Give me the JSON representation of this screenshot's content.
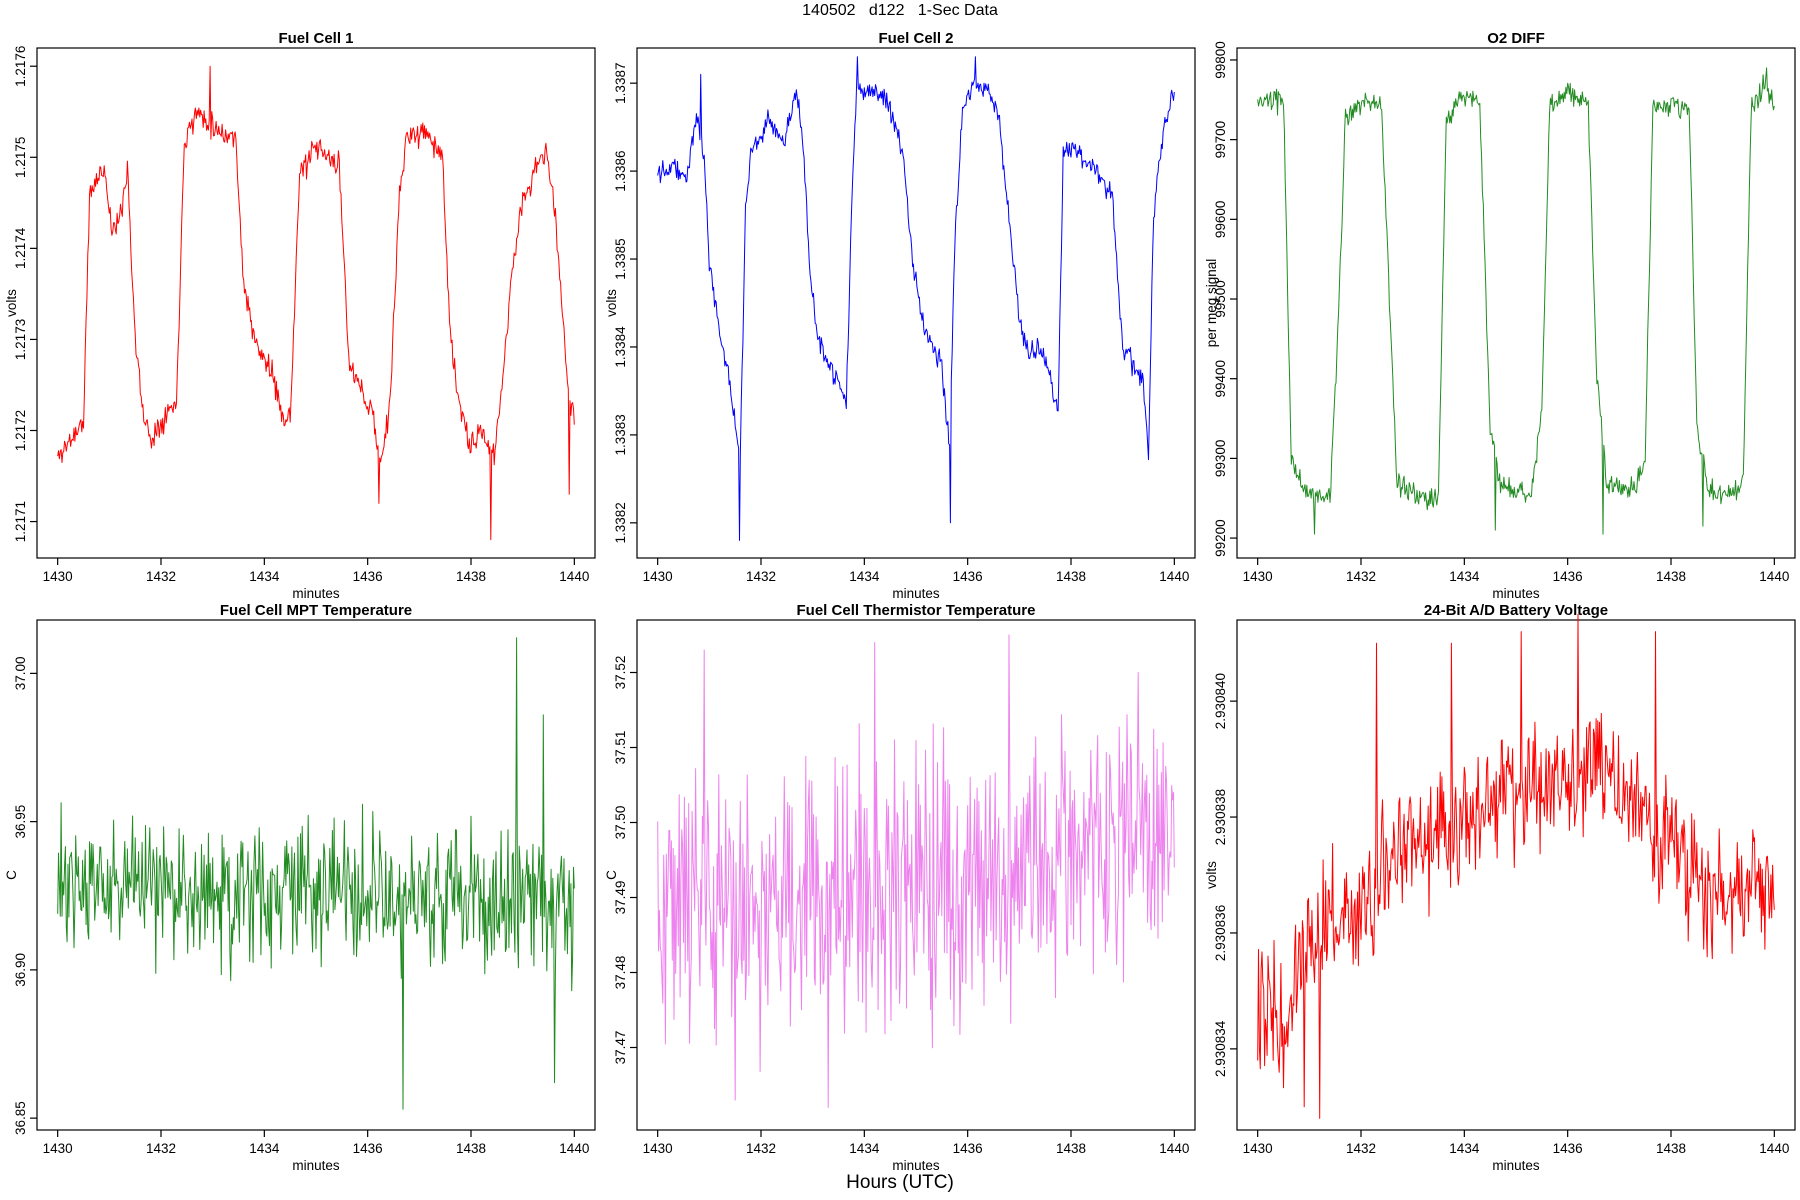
{
  "page": {
    "title": "140502   d122   1-Sec Data",
    "global_xlabel": "Hours (UTC)",
    "background": "#FFFFFF"
  },
  "chart_data": [
    {
      "type": "line",
      "title": "Fuel Cell 1",
      "xlabel": "minutes",
      "ylabel": "volts",
      "color": "#FF0000",
      "grid": false,
      "legend": null,
      "xlim": [
        1429.6,
        1440.4
      ],
      "ylim": [
        1.21706,
        1.21762
      ],
      "xtick_vals": [
        1430,
        1432,
        1434,
        1436,
        1438,
        1440
      ],
      "xtick_labels": [
        "1430",
        "1432",
        "1434",
        "1436",
        "1438",
        "1440"
      ],
      "ytick_vals": [
        1.2171,
        1.2172,
        1.2173,
        1.2174,
        1.2175,
        1.2176
      ],
      "ytick_labels": [
        "1.2171",
        "1.2172",
        "1.2173",
        "1.2174",
        "1.2175",
        "1.2176"
      ],
      "signal": {
        "t_start": 1430,
        "t_end": 1440,
        "points_per_minute": 60,
        "seed": 11,
        "noise_amp": 2e-05,
        "baseline": [
          [
            1430.0,
            1.21717
          ],
          [
            1430.5,
            1.21721
          ],
          [
            1430.62,
            1.21746
          ],
          [
            1430.9,
            1.21749
          ],
          [
            1431.05,
            1.21742
          ],
          [
            1431.2,
            1.21743
          ],
          [
            1431.35,
            1.21749
          ],
          [
            1431.5,
            1.2173
          ],
          [
            1431.65,
            1.21722
          ],
          [
            1431.8,
            1.21719
          ],
          [
            1432.1,
            1.21722
          ],
          [
            1432.3,
            1.21723
          ],
          [
            1432.45,
            1.21752
          ],
          [
            1432.7,
            1.21755
          ],
          [
            1433.1,
            1.21753
          ],
          [
            1433.45,
            1.21752
          ],
          [
            1433.6,
            1.21736
          ],
          [
            1433.85,
            1.21729
          ],
          [
            1434.1,
            1.21727
          ],
          [
            1434.35,
            1.21722
          ],
          [
            1434.5,
            1.21721
          ],
          [
            1434.68,
            1.21748
          ],
          [
            1435.0,
            1.21751
          ],
          [
            1435.45,
            1.21749
          ],
          [
            1435.65,
            1.21727
          ],
          [
            1435.9,
            1.21724
          ],
          [
            1436.1,
            1.21722
          ],
          [
            1436.25,
            1.21716
          ],
          [
            1436.45,
            1.21724
          ],
          [
            1436.6,
            1.21745
          ],
          [
            1436.75,
            1.21752
          ],
          [
            1437.1,
            1.21753
          ],
          [
            1437.45,
            1.2175
          ],
          [
            1437.6,
            1.2173
          ],
          [
            1437.8,
            1.21722
          ],
          [
            1438.0,
            1.21718
          ],
          [
            1438.2,
            1.2172
          ],
          [
            1438.45,
            1.21717
          ],
          [
            1438.6,
            1.21725
          ],
          [
            1438.8,
            1.21738
          ],
          [
            1439.0,
            1.21745
          ],
          [
            1439.2,
            1.21748
          ],
          [
            1439.45,
            1.21751
          ],
          [
            1439.6,
            1.21745
          ],
          [
            1439.75,
            1.21735
          ],
          [
            1439.9,
            1.21723
          ],
          [
            1440.0,
            1.21722
          ]
        ],
        "spikes": [
          [
            1432.95,
            1.2176
          ],
          [
            1436.22,
            1.21712
          ],
          [
            1438.38,
            1.21708
          ],
          [
            1439.9,
            1.21713
          ]
        ]
      }
    },
    {
      "type": "line",
      "title": "Fuel Cell 2",
      "xlabel": "minutes",
      "ylabel": "volts",
      "color": "#0000FF",
      "grid": false,
      "legend": null,
      "xlim": [
        1429.6,
        1440.4
      ],
      "ylim": [
        1.33816,
        1.33874
      ],
      "xtick_vals": [
        1430,
        1432,
        1434,
        1436,
        1438,
        1440
      ],
      "xtick_labels": [
        "1430",
        "1432",
        "1434",
        "1436",
        "1438",
        "1440"
      ],
      "ytick_vals": [
        1.3382,
        1.3383,
        1.3384,
        1.3385,
        1.3386,
        1.3387
      ],
      "ytick_labels": [
        "1.3382",
        "1.3383",
        "1.3384",
        "1.3385",
        "1.3386",
        "1.3387"
      ],
      "signal": {
        "t_start": 1430,
        "t_end": 1440,
        "points_per_minute": 60,
        "seed": 22,
        "noise_amp": 1.8e-05,
        "baseline": [
          [
            1430.0,
            1.3386
          ],
          [
            1430.3,
            1.33861
          ],
          [
            1430.55,
            1.33859
          ],
          [
            1430.75,
            1.33866
          ],
          [
            1430.9,
            1.33862
          ],
          [
            1431.0,
            1.3385
          ],
          [
            1431.2,
            1.33841
          ],
          [
            1431.35,
            1.33838
          ],
          [
            1431.5,
            1.33831
          ],
          [
            1431.6,
            1.33828
          ],
          [
            1431.7,
            1.33855
          ],
          [
            1431.8,
            1.33862
          ],
          [
            1432.0,
            1.33864
          ],
          [
            1432.2,
            1.33866
          ],
          [
            1432.4,
            1.33863
          ],
          [
            1432.55,
            1.33866
          ],
          [
            1432.7,
            1.33869
          ],
          [
            1432.85,
            1.3386
          ],
          [
            1432.95,
            1.33848
          ],
          [
            1433.1,
            1.33841
          ],
          [
            1433.3,
            1.33838
          ],
          [
            1433.5,
            1.33836
          ],
          [
            1433.65,
            1.33833
          ],
          [
            1433.75,
            1.33855
          ],
          [
            1433.85,
            1.3387
          ],
          [
            1434.1,
            1.33869
          ],
          [
            1434.4,
            1.33868
          ],
          [
            1434.6,
            1.33865
          ],
          [
            1434.75,
            1.33862
          ],
          [
            1434.9,
            1.33852
          ],
          [
            1435.1,
            1.33843
          ],
          [
            1435.3,
            1.3384
          ],
          [
            1435.5,
            1.33838
          ],
          [
            1435.65,
            1.33829
          ],
          [
            1435.75,
            1.33852
          ],
          [
            1435.9,
            1.33867
          ],
          [
            1436.1,
            1.3387
          ],
          [
            1436.4,
            1.33869
          ],
          [
            1436.6,
            1.33866
          ],
          [
            1436.8,
            1.33855
          ],
          [
            1437.0,
            1.33843
          ],
          [
            1437.2,
            1.33839
          ],
          [
            1437.4,
            1.3384
          ],
          [
            1437.6,
            1.33837
          ],
          [
            1437.75,
            1.33832
          ],
          [
            1437.85,
            1.33862
          ],
          [
            1438.0,
            1.33863
          ],
          [
            1438.3,
            1.33861
          ],
          [
            1438.6,
            1.33859
          ],
          [
            1438.8,
            1.33857
          ],
          [
            1439.0,
            1.3384
          ],
          [
            1439.2,
            1.33838
          ],
          [
            1439.4,
            1.33836
          ],
          [
            1439.5,
            1.33828
          ],
          [
            1439.6,
            1.33855
          ],
          [
            1439.8,
            1.33865
          ],
          [
            1440.0,
            1.33869
          ]
        ],
        "spikes": [
          [
            1430.83,
            1.33871
          ],
          [
            1433.87,
            1.33873
          ],
          [
            1436.15,
            1.33873
          ],
          [
            1431.58,
            1.33818
          ],
          [
            1435.67,
            1.3382
          ]
        ]
      }
    },
    {
      "type": "line",
      "title": "O2 DIFF",
      "xlabel": "minutes",
      "ylabel": "per meg signal",
      "color": "#228B22",
      "grid": false,
      "legend": null,
      "xlim": [
        1429.6,
        1440.4
      ],
      "ylim": [
        99175,
        99815
      ],
      "xtick_vals": [
        1430,
        1432,
        1434,
        1436,
        1438,
        1440
      ],
      "xtick_labels": [
        "1430",
        "1432",
        "1434",
        "1436",
        "1438",
        "1440"
      ],
      "ytick_vals": [
        99200,
        99300,
        99400,
        99500,
        99600,
        99700,
        99800
      ],
      "ytick_labels": [
        "99200",
        "99300",
        "99400",
        "99500",
        "99600",
        "99700",
        "99800"
      ],
      "signal": {
        "t_start": 1430,
        "t_end": 1440,
        "points_per_minute": 60,
        "seed": 33,
        "noise_amp": 20,
        "baseline": [
          [
            1430.0,
            99745
          ],
          [
            1430.5,
            99750
          ],
          [
            1430.65,
            99300
          ],
          [
            1430.9,
            99260
          ],
          [
            1431.4,
            99250
          ],
          [
            1431.55,
            99450
          ],
          [
            1431.7,
            99730
          ],
          [
            1432.0,
            99745
          ],
          [
            1432.4,
            99740
          ],
          [
            1432.55,
            99500
          ],
          [
            1432.7,
            99265
          ],
          [
            1433.3,
            99250
          ],
          [
            1433.5,
            99255
          ],
          [
            1433.65,
            99720
          ],
          [
            1433.9,
            99755
          ],
          [
            1434.3,
            99745
          ],
          [
            1434.5,
            99340
          ],
          [
            1434.7,
            99265
          ],
          [
            1435.3,
            99255
          ],
          [
            1435.5,
            99360
          ],
          [
            1435.65,
            99740
          ],
          [
            1436.0,
            99760
          ],
          [
            1436.4,
            99745
          ],
          [
            1436.55,
            99420
          ],
          [
            1436.75,
            99270
          ],
          [
            1437.3,
            99260
          ],
          [
            1437.5,
            99300
          ],
          [
            1437.65,
            99740
          ],
          [
            1438.0,
            99745
          ],
          [
            1438.35,
            99740
          ],
          [
            1438.5,
            99350
          ],
          [
            1438.7,
            99260
          ],
          [
            1439.2,
            99255
          ],
          [
            1439.4,
            99270
          ],
          [
            1439.55,
            99740
          ],
          [
            1439.8,
            99770
          ],
          [
            1440.0,
            99750
          ]
        ],
        "spikes": [
          [
            1431.1,
            99205
          ],
          [
            1434.6,
            99210
          ],
          [
            1436.68,
            99205
          ],
          [
            1438.62,
            99215
          ],
          [
            1439.85,
            99790
          ]
        ]
      }
    },
    {
      "type": "line",
      "title": "Fuel Cell MPT Temperature",
      "xlabel": "minutes",
      "ylabel": "C",
      "color": "#228B22",
      "grid": false,
      "legend": null,
      "xlim": [
        1429.6,
        1440.4
      ],
      "ylim": [
        36.846,
        37.018
      ],
      "xtick_vals": [
        1430,
        1432,
        1434,
        1436,
        1438,
        1440
      ],
      "xtick_labels": [
        "1430",
        "1432",
        "1434",
        "1436",
        "1438",
        "1440"
      ],
      "ytick_vals": [
        36.85,
        36.9,
        36.95,
        37.0
      ],
      "ytick_labels": [
        "36.85",
        "36.90",
        "36.95",
        "37.00"
      ],
      "signal": {
        "t_start": 1430,
        "t_end": 1440,
        "points_per_minute": 60,
        "seed": 44,
        "noise_amp": 0.036,
        "baseline": [
          [
            1430.0,
            36.929
          ],
          [
            1433.0,
            36.927
          ],
          [
            1436.0,
            36.926
          ],
          [
            1438.0,
            36.925
          ],
          [
            1440.0,
            36.923
          ]
        ],
        "spikes": [
          [
            1436.68,
            36.853
          ],
          [
            1438.88,
            37.012
          ],
          [
            1439.4,
            36.986
          ],
          [
            1439.62,
            36.862
          ]
        ]
      }
    },
    {
      "type": "line",
      "title": "Fuel Cell Thermistor Temperature",
      "xlabel": "minutes",
      "ylabel": "C",
      "color": "#EE82EE",
      "grid": false,
      "legend": null,
      "xlim": [
        1429.6,
        1440.4
      ],
      "ylim": [
        37.459,
        37.527
      ],
      "xtick_vals": [
        1430,
        1432,
        1434,
        1436,
        1438,
        1440
      ],
      "xtick_labels": [
        "1430",
        "1432",
        "1434",
        "1436",
        "1438",
        "1440"
      ],
      "ytick_vals": [
        37.47,
        37.48,
        37.49,
        37.5,
        37.51,
        37.52
      ],
      "ytick_labels": [
        "37.47",
        "37.48",
        "37.49",
        "37.50",
        "37.51",
        "37.52"
      ],
      "signal": {
        "t_start": 1430,
        "t_end": 1440,
        "points_per_minute": 60,
        "seed": 55,
        "noise_amp": 0.026,
        "baseline": [
          [
            1430.0,
            37.491
          ],
          [
            1432.0,
            37.489
          ],
          [
            1434.0,
            37.491
          ],
          [
            1436.0,
            37.492
          ],
          [
            1437.5,
            37.495
          ],
          [
            1440.0,
            37.497
          ]
        ],
        "spikes": [
          [
            1430.9,
            37.523
          ],
          [
            1431.5,
            37.463
          ],
          [
            1433.3,
            37.462
          ],
          [
            1434.2,
            37.524
          ],
          [
            1436.8,
            37.525
          ],
          [
            1439.3,
            37.52
          ]
        ]
      }
    },
    {
      "type": "line",
      "title": "24-Bit A/D Battery Voltage",
      "xlabel": "minutes",
      "ylabel": "volts",
      "color": "#FF0000",
      "grid": false,
      "legend": null,
      "xlim": [
        1429.6,
        1440.4
      ],
      "ylim": [
        2.9308326,
        2.9308414
      ],
      "xtick_vals": [
        1430,
        1432,
        1434,
        1436,
        1438,
        1440
      ],
      "xtick_labels": [
        "1430",
        "1432",
        "1434",
        "1436",
        "1438",
        "1440"
      ],
      "ytick_vals": [
        2.930834,
        2.930836,
        2.930838,
        2.93084
      ],
      "ytick_labels": [
        "2.930834",
        "2.930836",
        "2.930838",
        "2.930840"
      ],
      "signal": {
        "t_start": 1430,
        "t_end": 1440,
        "points_per_minute": 60,
        "seed": 66,
        "noise_amp": 1.6e-06,
        "baseline": [
          [
            1430.0,
            2.930835
          ],
          [
            1430.5,
            2.9308345
          ],
          [
            1431.0,
            2.930836
          ],
          [
            1432.0,
            2.9308365
          ],
          [
            1432.5,
            2.930837
          ],
          [
            1433.0,
            2.9308375
          ],
          [
            1434.0,
            2.930838
          ],
          [
            1435.0,
            2.9308385
          ],
          [
            1436.0,
            2.9308385
          ],
          [
            1436.5,
            2.930839
          ],
          [
            1437.0,
            2.9308385
          ],
          [
            1437.5,
            2.930838
          ],
          [
            1438.0,
            2.9308375
          ],
          [
            1438.5,
            2.930837
          ],
          [
            1439.0,
            2.9308365
          ],
          [
            1439.5,
            2.930837
          ],
          [
            1440.0,
            2.9308365
          ]
        ],
        "spikes": [
          [
            1432.3,
            2.930841
          ],
          [
            1433.75,
            2.930841
          ],
          [
            1435.1,
            2.9308412
          ],
          [
            1436.2,
            2.9308415
          ],
          [
            1437.7,
            2.9308412
          ],
          [
            1430.9,
            2.930833
          ],
          [
            1431.2,
            2.9308328
          ]
        ]
      }
    }
  ]
}
